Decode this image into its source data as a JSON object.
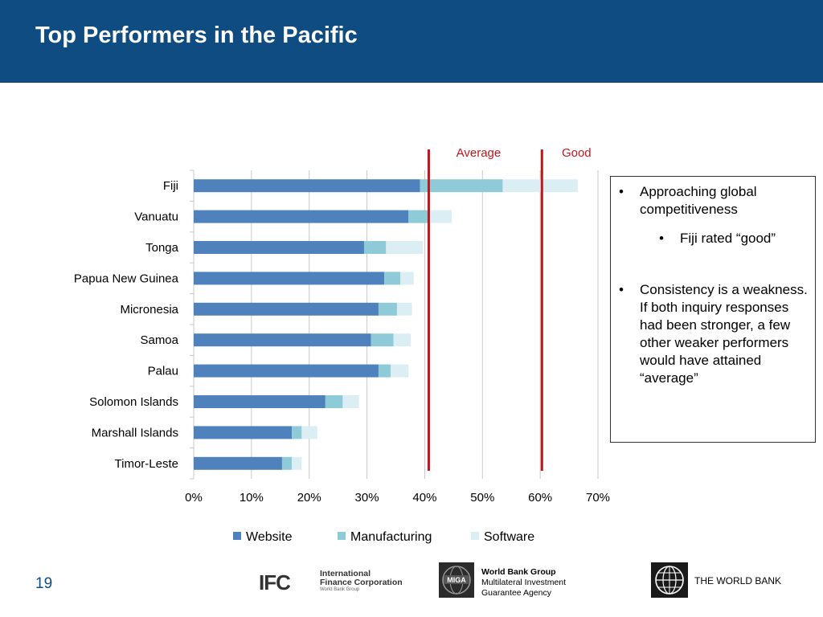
{
  "slide": {
    "title": "Top Performers in the Pacific",
    "page_number": "19"
  },
  "callout": {
    "bullet_1": "Approaching global competitiveness",
    "bullet_1_sub": "Fiji rated “good”",
    "bullet_2": "Consistency is a weakness. If both inquiry responses had been stronger, a few other weaker performers would have attained “average”",
    "bullet_symbol": "•"
  },
  "chart_data": {
    "type": "bar",
    "orientation": "horizontal",
    "stacked": true,
    "categories": [
      "Fiji",
      "Vanuatu",
      "Tonga",
      "Papua New Guinea",
      "Micronesia",
      "Samoa",
      "Palau",
      "Solomon Islands",
      "Marshall Islands",
      "Timor-Leste"
    ],
    "series": [
      {
        "name": "Website",
        "color": "#4f81bd",
        "values": [
          39.2,
          37.2,
          29.5,
          33.0,
          32.0,
          30.7,
          32.0,
          22.8,
          17.0,
          15.3
        ]
      },
      {
        "name": "Manufacturing",
        "color": "#8fcad9",
        "values": [
          14.3,
          3.3,
          3.8,
          2.8,
          3.2,
          3.9,
          2.1,
          3.0,
          1.7,
          1.7
        ]
      },
      {
        "name": "Software",
        "color": "#dbeef4",
        "values": [
          13.0,
          4.2,
          6.4,
          2.3,
          2.6,
          3.0,
          3.1,
          2.8,
          2.7,
          1.7
        ]
      }
    ],
    "xlim": [
      0,
      70
    ],
    "x_ticks": [
      "0%",
      "10%",
      "20%",
      "30%",
      "40%",
      "50%",
      "60%",
      "70%"
    ],
    "reference_lines": [
      {
        "label": "Average",
        "value": 40.7,
        "color": "#c0161d"
      },
      {
        "label": "Good",
        "value": 60.3,
        "color": "#c0161d"
      }
    ],
    "legend_position": "bottom",
    "grid": true
  },
  "logos": {
    "ifc_mark": "IFC",
    "ifc_name_line1": "International",
    "ifc_name_line2": "Finance Corporation",
    "ifc_sub": "World Bank Group",
    "miga_mark": "MIGA",
    "miga_line1": "World Bank Group",
    "miga_line2": "Multilateral Investment",
    "miga_line3": "Guarantee Agency",
    "wb_name": "THE WORLD BANK"
  },
  "colors": {
    "header": "#0f4c81",
    "accent_red": "#c0161d"
  }
}
